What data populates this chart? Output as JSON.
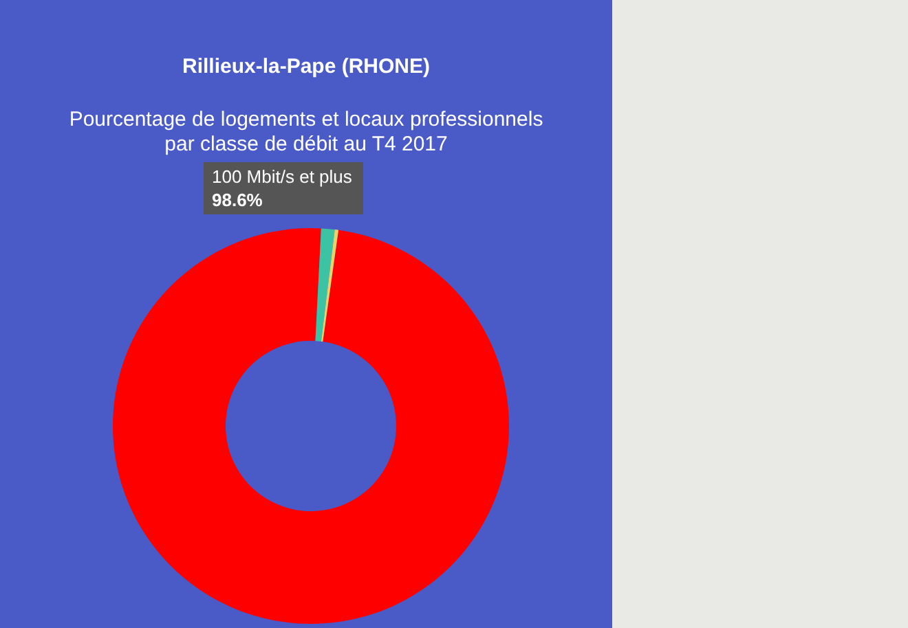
{
  "chart_data": {
    "type": "donut",
    "title": "Rillieux-la-Pape (RHONE)",
    "subtitle": "Pourcentage de logements et locaux professionnels\npar classe de débit au T4 2017",
    "categories": [
      "100 Mbit/s et plus",
      null,
      null
    ],
    "values": [
      98.6,
      1.1,
      0.3
    ],
    "colors": [
      "#ff0000",
      "#3cc3a4",
      "#e6d36a"
    ],
    "value_labels": [
      "98.6%",
      null,
      null
    ],
    "legend": false
  }
}
